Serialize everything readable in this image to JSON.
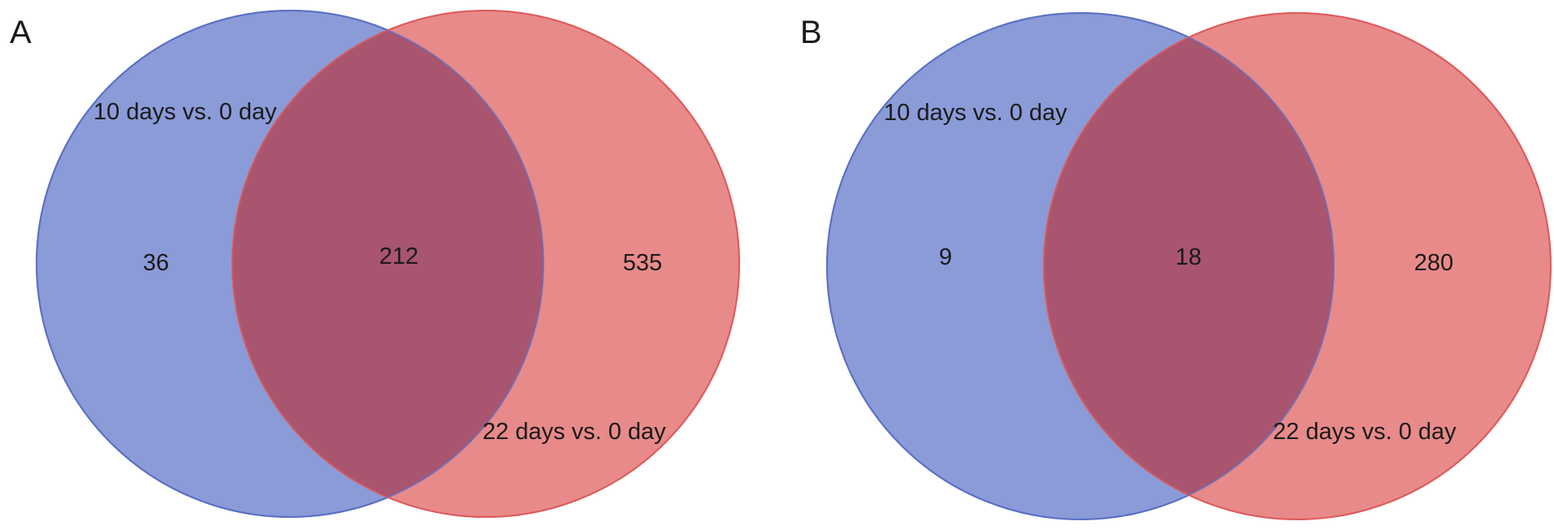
{
  "panels": [
    {
      "label": "A",
      "sets": [
        {
          "name": "10 days vs. 0 day",
          "color": "#5a6fc4"
        },
        {
          "name": "22 days vs. 0 day",
          "color": "#de5a5a"
        }
      ],
      "counts": {
        "only_first": "36",
        "intersection": "212",
        "only_second": "535"
      }
    },
    {
      "label": "B",
      "sets": [
        {
          "name": "10 days vs. 0 day",
          "color": "#5a6fc4"
        },
        {
          "name": "22 days vs. 0 day",
          "color": "#de5a5a"
        }
      ],
      "counts": {
        "only_first": "9",
        "intersection": "18",
        "only_second": "280"
      }
    }
  ],
  "colors": {
    "first_fill": "#8a9bd8",
    "first_stroke": "#5a6fc4",
    "second_fill": "#e88a8a",
    "second_stroke": "#de5a5a",
    "overlap_fill": "#a9556f"
  }
}
